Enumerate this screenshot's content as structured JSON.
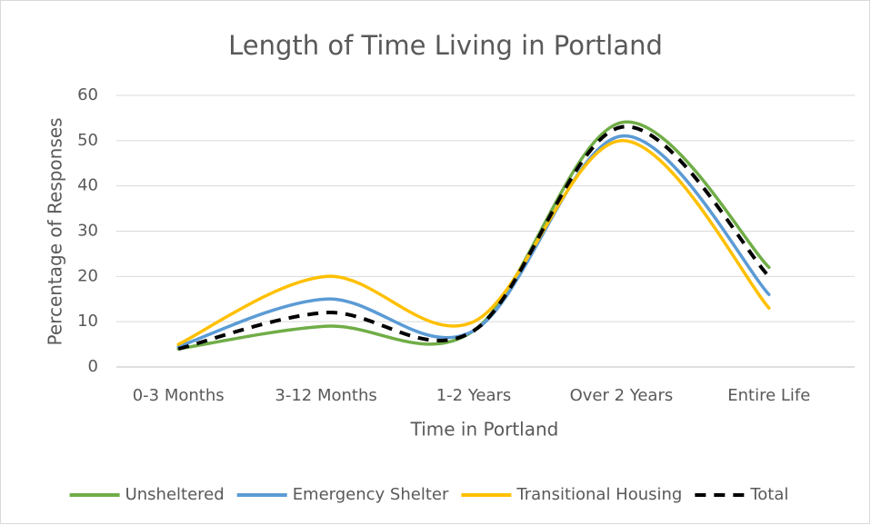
{
  "chart_data": {
    "type": "line",
    "title": "Length of Time Living in Portland",
    "x_label": "Time in Portland",
    "y_label": "Percentage of Responses",
    "categories": [
      "0-3 Months",
      "3-12 Months",
      "1-2 Years",
      "Over 2 Years",
      "Entire Life"
    ],
    "series": [
      {
        "name": "Unsheltered",
        "color": "#70ad47",
        "values": [
          4,
          9,
          8,
          54,
          22
        ]
      },
      {
        "name": "Emergency Shelter",
        "color": "#5b9bd5",
        "values": [
          4.5,
          15,
          8,
          51,
          16
        ]
      },
      {
        "name": "Transitional Housing",
        "color": "#ffc000",
        "values": [
          5,
          20,
          10,
          50,
          13
        ]
      },
      {
        "name": "Total",
        "color": "#000000",
        "dashed": true,
        "values": [
          4,
          12,
          8,
          53,
          20
        ]
      }
    ],
    "ylim": [
      0,
      60
    ],
    "yticks": [
      0,
      10,
      20,
      30,
      40,
      50,
      60
    ],
    "grid": true,
    "smooth": true,
    "legend": "bottom"
  }
}
